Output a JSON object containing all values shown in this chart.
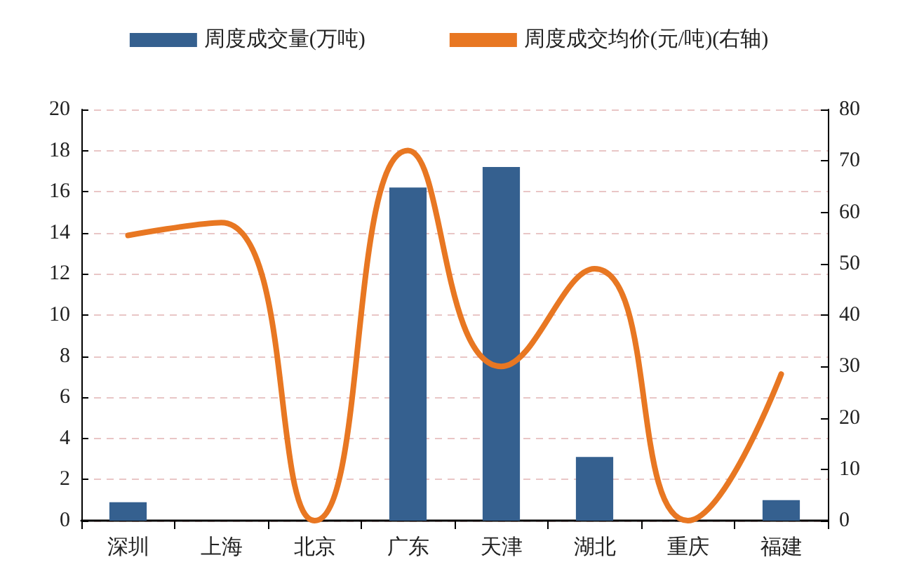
{
  "chart_data": {
    "type": "bar",
    "categories": [
      "深圳",
      "上海",
      "北京",
      "广东",
      "天津",
      "湖北",
      "重庆",
      "福建"
    ],
    "series": [
      {
        "name": "周度成交量(万吨)",
        "color": "#35608f",
        "values": [
          0.9,
          0,
          0,
          16.2,
          17.2,
          3.1,
          0,
          1.0
        ]
      },
      {
        "name": "周度成交均价(元/吨)(右轴)",
        "type": "line",
        "axis": "y2",
        "color": "#e87722",
        "values": [
          55.5,
          58,
          0,
          72,
          30,
          49,
          0,
          28.5
        ]
      }
    ],
    "ylim": [
      0,
      20
    ],
    "yticks": [
      0,
      2,
      4,
      6,
      8,
      10,
      12,
      14,
      16,
      18,
      20
    ],
    "y2lim": [
      0,
      80
    ],
    "y2ticks": [
      0,
      10,
      20,
      30,
      40,
      50,
      60,
      70,
      80
    ],
    "grid": "y",
    "legend": "top",
    "marker": "none",
    "line_style": "solid"
  }
}
